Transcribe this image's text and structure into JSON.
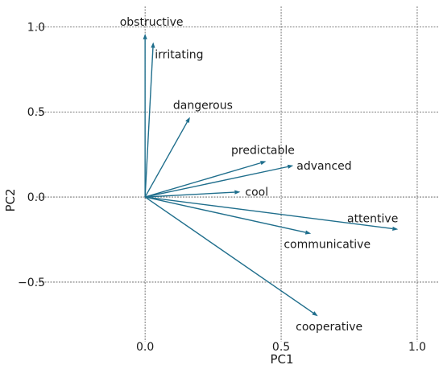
{
  "chart_data": {
    "type": "biplot",
    "xlabel": "PC1",
    "ylabel": "PC2",
    "xlim": [
      -0.4,
      1.08
    ],
    "ylim": [
      -0.85,
      1.12
    ],
    "xticks": [
      0.0,
      0.5,
      1.0
    ],
    "xtick_labels": [
      "0.0",
      "0.5",
      "1.0"
    ],
    "yticks": [
      -0.5,
      0.0,
      0.5,
      1.0
    ],
    "ytick_labels": [
      "−0.5",
      "0.0",
      "0.5",
      "1.0"
    ],
    "grid": true,
    "arrow_color": "#1f6e8c",
    "vectors": [
      {
        "label": "obstructive",
        "x": 0.0,
        "y": 0.96
      },
      {
        "label": "irritating",
        "x": 0.03,
        "y": 0.91
      },
      {
        "label": "dangerous",
        "x": 0.165,
        "y": 0.47
      },
      {
        "label": "predictable",
        "x": 0.445,
        "y": 0.21
      },
      {
        "label": "advanced",
        "x": 0.545,
        "y": 0.185
      },
      {
        "label": "cool",
        "x": 0.35,
        "y": 0.03
      },
      {
        "label": "attentive",
        "x": 0.93,
        "y": -0.19
      },
      {
        "label": "communicative",
        "x": 0.61,
        "y": -0.215
      },
      {
        "label": "cooperative",
        "x": 0.635,
        "y": -0.7
      }
    ]
  }
}
